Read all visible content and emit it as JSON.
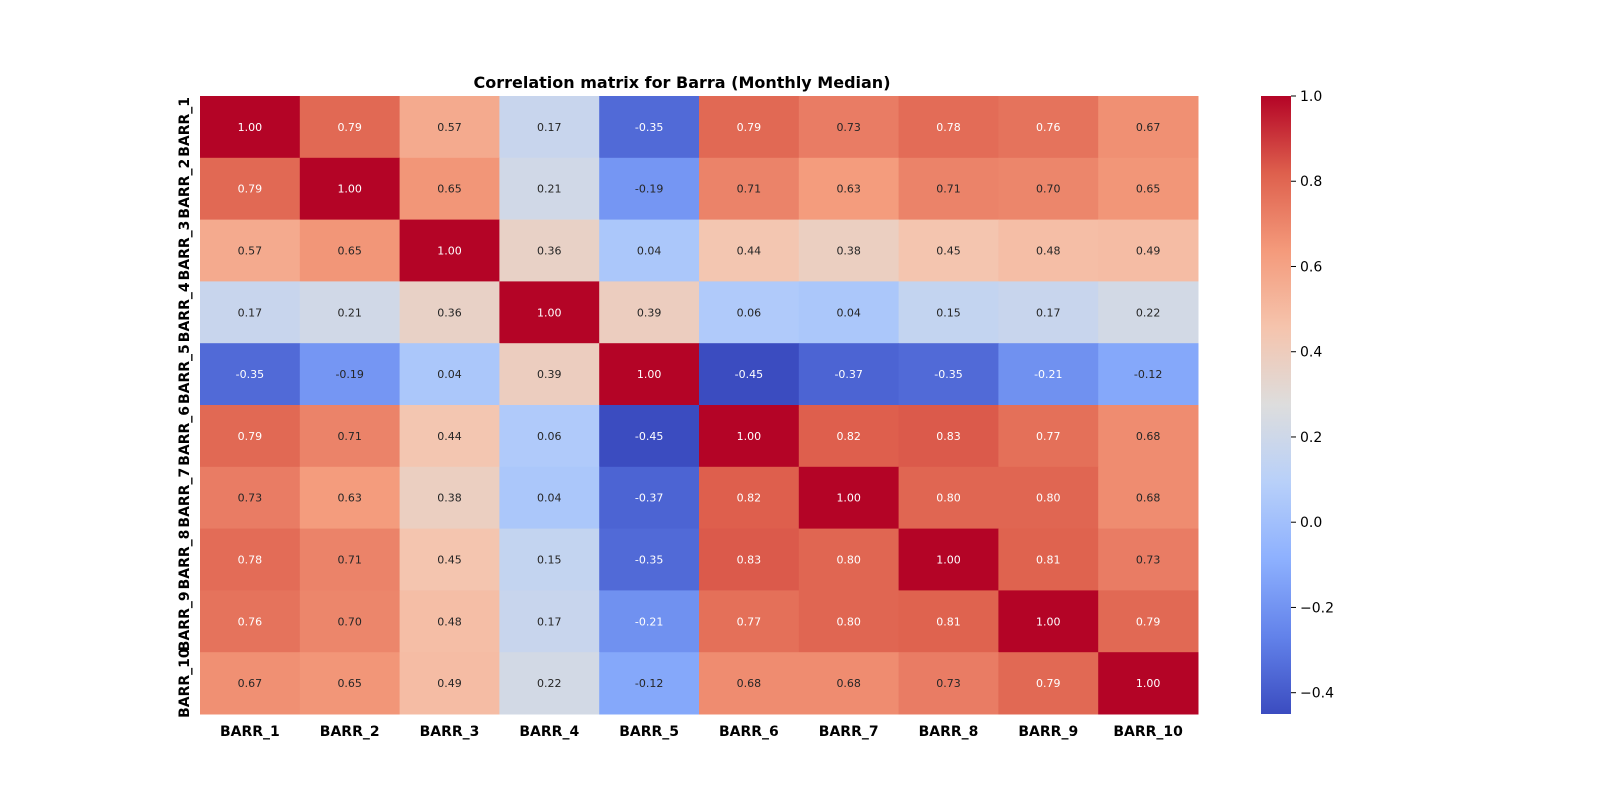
{
  "chart_data": {
    "type": "heatmap",
    "title": "Correlation matrix for Barra (Monthly Median)",
    "x_labels": [
      "BARR_1",
      "BARR_2",
      "BARR_3",
      "BARR_4",
      "BARR_5",
      "BARR_6",
      "BARR_7",
      "BARR_8",
      "BARR_9",
      "BARR_10"
    ],
    "y_labels": [
      "BARR_1",
      "BARR_2",
      "BARR_3",
      "BARR_4",
      "BARR_5",
      "BARR_6",
      "BARR_7",
      "BARR_8",
      "BARR_9",
      "BARR_10"
    ],
    "values": [
      [
        1.0,
        0.79,
        0.57,
        0.17,
        -0.35,
        0.79,
        0.73,
        0.78,
        0.76,
        0.67
      ],
      [
        0.79,
        1.0,
        0.65,
        0.21,
        -0.19,
        0.71,
        0.63,
        0.71,
        0.7,
        0.65
      ],
      [
        0.57,
        0.65,
        1.0,
        0.36,
        0.04,
        0.44,
        0.38,
        0.45,
        0.48,
        0.49
      ],
      [
        0.17,
        0.21,
        0.36,
        1.0,
        0.39,
        0.06,
        0.04,
        0.15,
        0.17,
        0.22
      ],
      [
        -0.35,
        -0.19,
        0.04,
        0.39,
        1.0,
        -0.45,
        -0.37,
        -0.35,
        -0.21,
        -0.12
      ],
      [
        0.79,
        0.71,
        0.44,
        0.06,
        -0.45,
        1.0,
        0.82,
        0.83,
        0.77,
        0.68
      ],
      [
        0.73,
        0.63,
        0.38,
        0.04,
        -0.37,
        0.82,
        1.0,
        0.8,
        0.8,
        0.68
      ],
      [
        0.78,
        0.71,
        0.45,
        0.15,
        -0.35,
        0.83,
        0.8,
        1.0,
        0.81,
        0.73
      ],
      [
        0.76,
        0.7,
        0.48,
        0.17,
        -0.21,
        0.77,
        0.8,
        0.81,
        1.0,
        0.79
      ],
      [
        0.67,
        0.65,
        0.49,
        0.22,
        -0.12,
        0.68,
        0.68,
        0.73,
        0.79,
        1.0
      ]
    ],
    "value_format": "0.00",
    "colormap": "coolwarm",
    "value_range": [
      -0.45,
      1.0
    ],
    "colorbar": {
      "ticks": [
        1.0,
        0.8,
        0.6,
        0.4,
        0.2,
        0.0,
        -0.2,
        -0.4
      ],
      "tick_labels": [
        "1.0",
        "0.8",
        "0.6",
        "0.4",
        "0.2",
        "0.0",
        "−0.2",
        "−0.4"
      ]
    },
    "grid": false
  }
}
